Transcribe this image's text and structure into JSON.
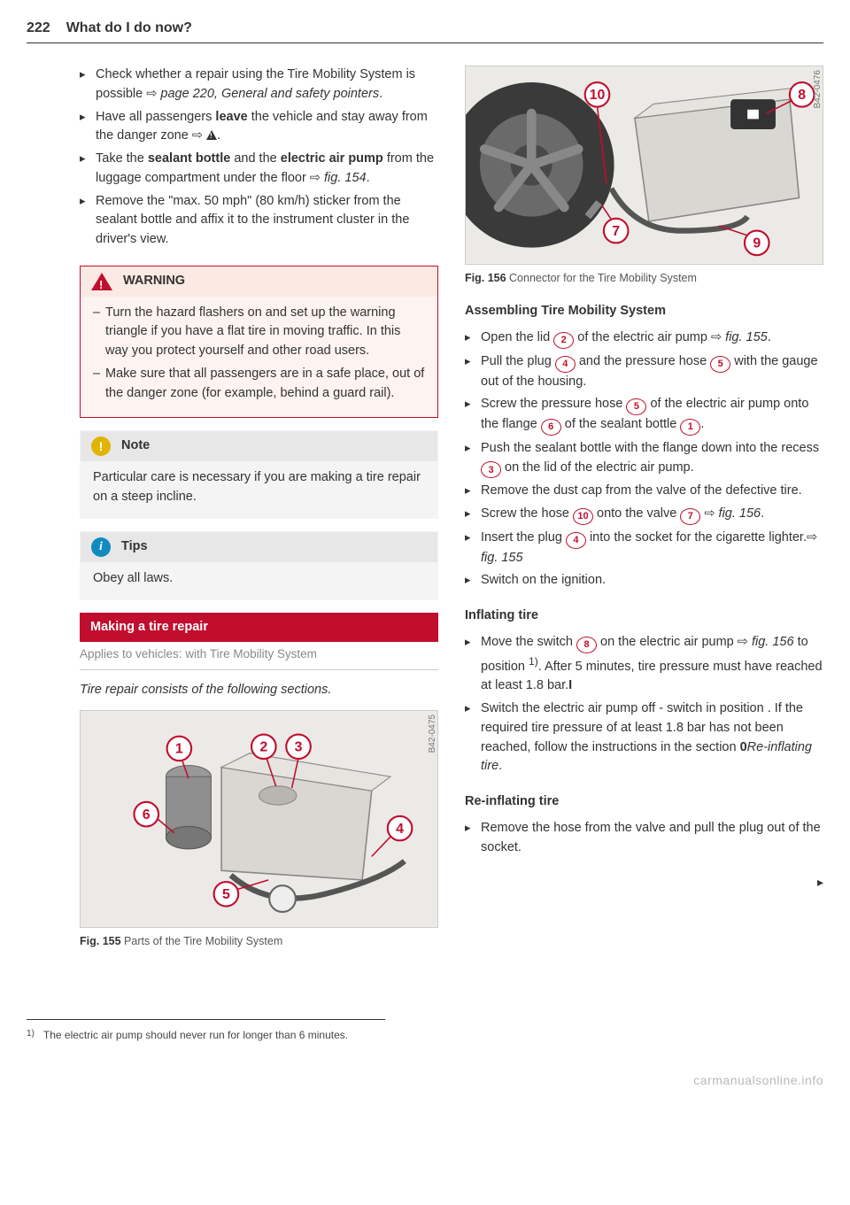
{
  "page": {
    "number": "222",
    "title": "What do I do now?"
  },
  "leftCol": {
    "initialSteps": [
      {
        "pre": "Check whether a repair using the Tire Mobility System is possible ",
        "refArrow": true,
        "refText": "page 220, General and safety pointers",
        "refItalic": true,
        "post": "."
      },
      {
        "pre": "Have all passengers ",
        "bold1": "leave",
        "mid": " the vehicle and stay away from the danger zone ",
        "refArrow": true,
        "triangle": true,
        "post": "."
      },
      {
        "pre": "Take the ",
        "bold1": "sealant bottle",
        "mid": " and the ",
        "bold2": "electric air pump",
        "mid2": " from the luggage compartment under the floor ",
        "refArrow": true,
        "refText": "fig. 154",
        "refItalic": true,
        "post": "."
      },
      {
        "pre": "Remove the \"max. 50 mph\" (80 km/h) sticker from the sealant bottle and affix it to the instrument cluster in the driver's view."
      }
    ],
    "warning": {
      "title": "WARNING",
      "items": [
        "Turn the hazard flashers on and set up the warning triangle if you have a flat tire in moving traffic. In this way you protect yourself and other road users.",
        "Make sure that all passengers are in a safe place, out of the danger zone (for example, behind a guard rail)."
      ]
    },
    "note": {
      "title": "Note",
      "body": "Particular care is necessary if you are making a tire repair on a steep incline."
    },
    "tips": {
      "title": "Tips",
      "body": "Obey all laws."
    },
    "sectionBar": "Making a tire repair",
    "appliesTo": "Applies to vehicles: with Tire Mobility System",
    "sectionSubtitle": "Tire repair consists of the following sections.",
    "fig155": {
      "sideLabel": "B42-0475",
      "captionBold": "Fig. 155",
      "captionText": "Parts of the Tire Mobility System",
      "labels": [
        "1",
        "2",
        "3",
        "4",
        "5",
        "6"
      ]
    }
  },
  "rightCol": {
    "fig156": {
      "sideLabel": "B42-0476",
      "captionBold": "Fig. 156",
      "captionText": "Connector for the Tire Mobility System",
      "labels": [
        "7",
        "8",
        "9",
        "10"
      ]
    },
    "assembling": {
      "heading": "Assembling Tire Mobility System",
      "items": [
        {
          "text": "Open the lid ",
          "num": "2",
          "text2": " of the electric air pump ",
          "refArrow": true,
          "refText": "fig. 155",
          "post": "."
        },
        {
          "text": "Pull the plug ",
          "num": "4",
          "text2": " and the pressure hose ",
          "num2": "5",
          "text3": " with the gauge out of the housing."
        },
        {
          "text": "Screw the pressure hose ",
          "num": "5",
          "text2": " of the electric air pump onto the flange ",
          "num2": "6",
          "text3": " of the sealant bottle ",
          "num3": "1",
          "post": "."
        },
        {
          "text": "Push the sealant bottle with the flange down into the recess ",
          "num": "3",
          "text2": " on the lid of the electric air pump."
        },
        {
          "text": "Remove the dust cap from the valve of the defective tire."
        },
        {
          "text": "Screw the hose ",
          "num": "10",
          "text2": " onto the valve ",
          "num2": "7",
          "text3": " ",
          "refArrow": true,
          "refText": "fig. 156",
          "post": "."
        },
        {
          "text": "Insert the plug ",
          "num": "4",
          "text2": " ",
          "refArrow": true,
          "refText": "fig. 155",
          "text3": " into the socket for the cigarette lighter."
        },
        {
          "text": "Switch on the ignition."
        }
      ]
    },
    "inflating": {
      "heading": "Inflating tire",
      "items": [
        {
          "text": "Move the switch ",
          "num": "8",
          "text2": " ",
          "refArrow": true,
          "refText": "fig. 156",
          "text3": " on the electric air pump ",
          "sup": "1)",
          "text4": " to position ",
          "bold": "I",
          "text5": ". After 5 minutes, tire pressure must have reached at least 1.8 bar."
        },
        {
          "text": "Switch the electric air pump off - switch in position ",
          "bold": "0",
          "text2": ". If the required tire pressure of at least 1.8 bar has not been reached, follow the instructions in the section ",
          "italic": "Re-inflating tire",
          "post": "."
        }
      ]
    },
    "reinflating": {
      "heading": "Re-inflating tire",
      "items": [
        {
          "text": "Remove the hose from the valve and pull the plug out of the socket."
        }
      ]
    }
  },
  "footnote": {
    "marker": "1)",
    "text": "The electric air pump should never run for longer than 6 minutes."
  },
  "watermark": "carmanualsonline.info",
  "colors": {
    "accent": "#c10e2e",
    "noteIcon": "#e0b400",
    "tipsIcon": "#0f8bc0",
    "figBg": "#eceae6",
    "figBorder": "#ccc",
    "pumpBody": "#d9d7d2",
    "wheel": "#3a3a3a"
  }
}
